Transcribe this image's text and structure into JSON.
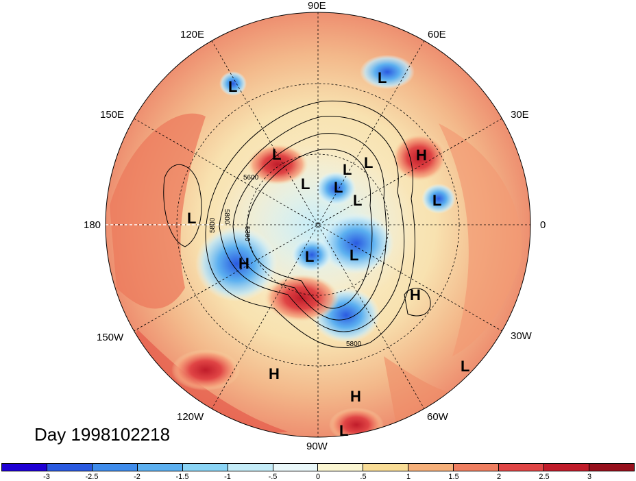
{
  "map": {
    "title": "Day 1998102218",
    "longitude_labels": {
      "90E": "90E",
      "120E": "120E",
      "60E": "60E",
      "150E": "150E",
      "30E": "30E",
      "180": "180",
      "0": "0",
      "150W": "150W",
      "30W": "30W",
      "120W": "120W",
      "60W": "60W",
      "90W": "90W"
    },
    "pressure_centers": [
      "L",
      "L",
      "L",
      "H",
      "L",
      "L",
      "L",
      "L",
      "L",
      "H",
      "L",
      "L",
      "H",
      "L",
      "H",
      "H",
      "L",
      "L",
      "L"
    ],
    "contour_labels": [
      "5600",
      "5800",
      "5800",
      "5300",
      "5800"
    ]
  },
  "colorbar": {
    "tick_labels": [
      "-3",
      "-2.5",
      "-2",
      "-1.5",
      "-1",
      "-.5",
      "0",
      ".5",
      "1",
      "1.5",
      "2",
      "2.5",
      "3"
    ],
    "colors": [
      "#1e00d4",
      "#2a5ae0",
      "#3f8ceb",
      "#5cb0f0",
      "#8ad4f5",
      "#c4ecf8",
      "#eaf8fa",
      "#fbf6d2",
      "#f9dd96",
      "#f6b07a",
      "#ef7e60",
      "#e04545",
      "#c01c2a",
      "#96101c"
    ]
  }
}
